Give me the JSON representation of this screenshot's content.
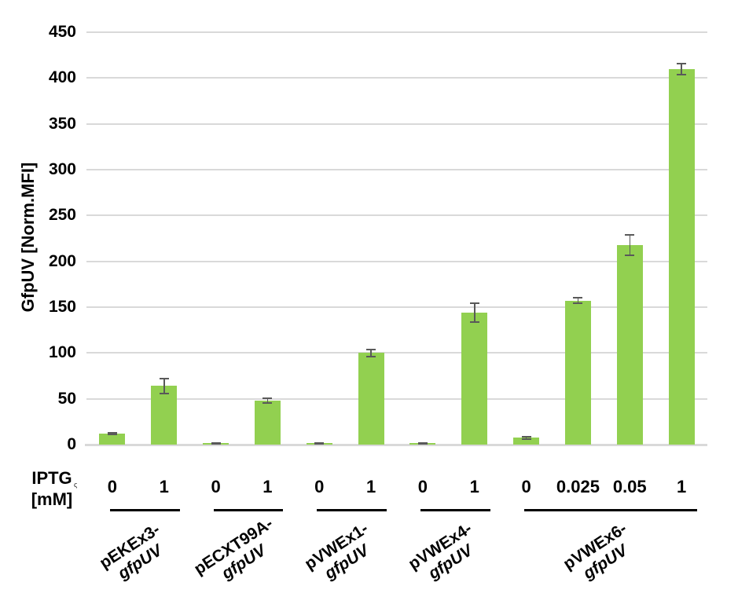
{
  "chart_data": {
    "type": "bar",
    "title": "",
    "ylabel": "GfpUV [Norm.MFI]",
    "xlabel": "",
    "xheader_line1": "IPTG",
    "xheader_line2": "[mM]",
    "stray_mark": "ς",
    "ylim": [
      0,
      450
    ],
    "ytick_interval": 50,
    "yticks": [
      "0",
      "50",
      "100",
      "150",
      "200",
      "250",
      "300",
      "350",
      "400",
      "450"
    ],
    "grid": true,
    "legend_position": "none",
    "bar_color": "#92d050",
    "error_bar_color": "#595959",
    "gridline_color": "#d9d9d9",
    "axis_line_color": "#d9d9d9",
    "text_color": "#000000",
    "groups": [
      {
        "plasmid": "pEKEx3-",
        "gene": "gfpUV",
        "bars": [
          {
            "iptg_mM": "0",
            "value": 12,
            "error": 1
          },
          {
            "iptg_mM": "1",
            "value": 64,
            "error": 8
          }
        ]
      },
      {
        "plasmid": "pECXT99A-",
        "gene": "gfpUV",
        "bars": [
          {
            "iptg_mM": "0",
            "value": 1.5,
            "error": 0.5
          },
          {
            "iptg_mM": "1",
            "value": 48,
            "error": 2.5
          }
        ]
      },
      {
        "plasmid": "pVWEx1-",
        "gene": "gfpUV",
        "bars": [
          {
            "iptg_mM": "0",
            "value": 1.5,
            "error": 0.5
          },
          {
            "iptg_mM": "1",
            "value": 100,
            "error": 4
          }
        ]
      },
      {
        "plasmid": "pVWEx4-",
        "gene": "gfpUV",
        "bars": [
          {
            "iptg_mM": "0",
            "value": 1.5,
            "error": 0.5
          },
          {
            "iptg_mM": "1",
            "value": 144,
            "error": 10
          }
        ]
      },
      {
        "plasmid": "pVWEx6-",
        "gene": "gfpUV",
        "bars": [
          {
            "iptg_mM": "0",
            "value": 7.5,
            "error": 1.5
          },
          {
            "iptg_mM": "0.025",
            "value": 157,
            "error": 3
          },
          {
            "iptg_mM": "0.05",
            "value": 218,
            "error": 11
          },
          {
            "iptg_mM": "1",
            "value": 410,
            "error": 6
          }
        ]
      }
    ]
  }
}
